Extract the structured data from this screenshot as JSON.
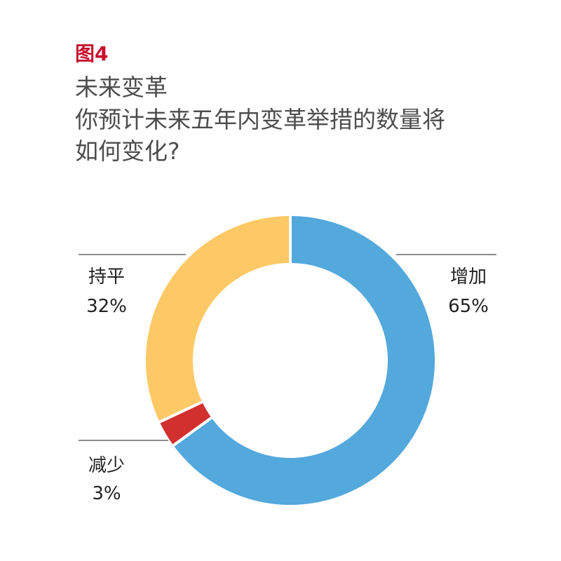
{
  "chart_data": {
    "type": "pie",
    "donut": true,
    "figure_label": "图4",
    "title": "未来变革",
    "subtitle": [
      "你预计未来五年内变革举措的数量将",
      "如何变化?"
    ],
    "categories": [
      "增加",
      "减少",
      "持平"
    ],
    "values": [
      65,
      3,
      32
    ],
    "value_labels": [
      "65%",
      "3%",
      "32%"
    ],
    "colors": [
      "#53a8dc",
      "#d1302f",
      "#fdc966"
    ]
  },
  "colors": {
    "figure_label": "#c8102e",
    "title": "#4d4d4d",
    "label": "#222222",
    "leader_line": "#8c8c8c"
  }
}
